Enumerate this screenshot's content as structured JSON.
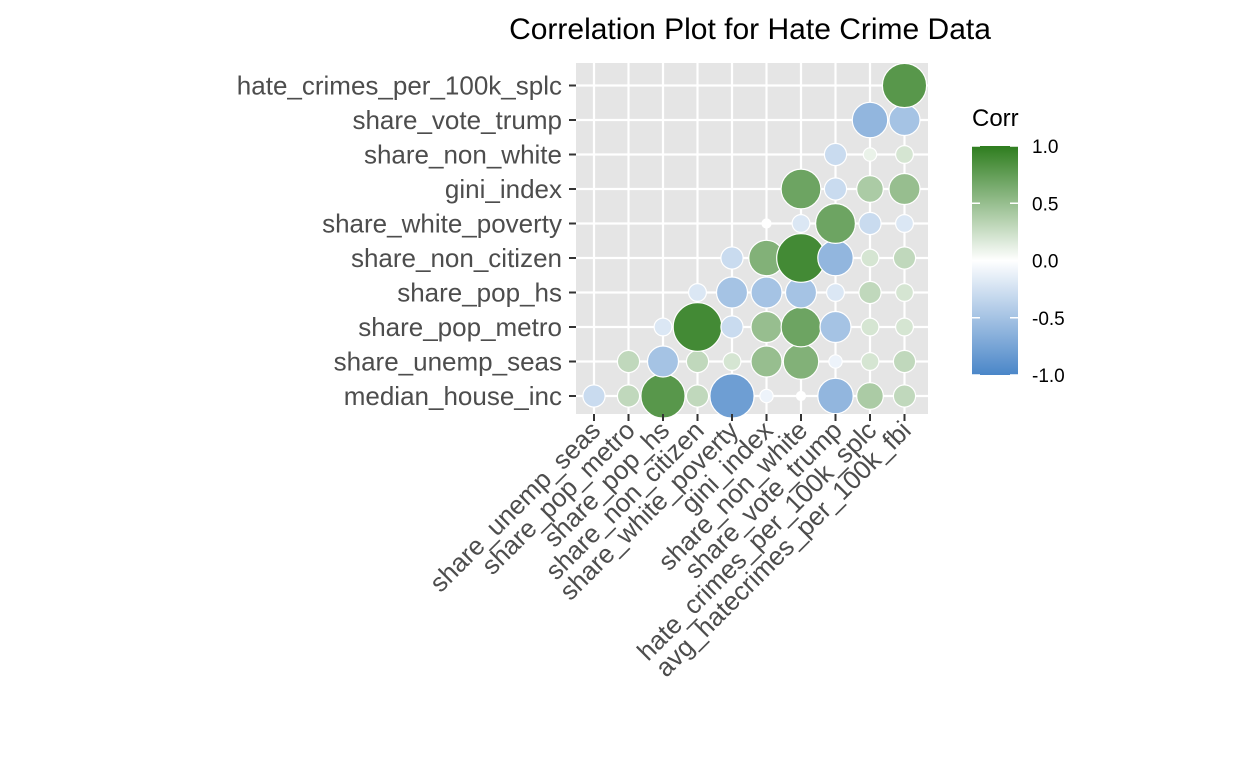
{
  "chart_data": {
    "type": "heatmap",
    "style": "circles, lower-triangular correlation matrix",
    "title": "Correlation Plot for Hate Crime Data",
    "x_labels": [
      "share_unemp_seas",
      "share_pop_metro",
      "share_pop_hs",
      "share_non_citizen",
      "share_white_poverty",
      "gini_index",
      "share_non_white",
      "share_vote_trump",
      "hate_crimes_per_100k_splc",
      "avg_hatecrimes_per_100k_fbi"
    ],
    "y_labels": [
      "median_house_inc",
      "share_unemp_seas",
      "share_pop_metro",
      "share_pop_hs",
      "share_non_citizen",
      "share_white_poverty",
      "gini_index",
      "share_non_white",
      "share_vote_trump",
      "hate_crimes_per_100k_splc"
    ],
    "matrix": [
      [
        -0.3,
        0.3,
        0.8,
        0.3,
        -0.8,
        -0.1,
        0.0,
        -0.6,
        0.4,
        0.3
      ],
      [
        null,
        0.3,
        -0.5,
        0.3,
        0.2,
        0.5,
        0.6,
        -0.1,
        0.2,
        0.3
      ],
      [
        null,
        null,
        -0.2,
        0.9,
        -0.3,
        0.5,
        0.7,
        -0.5,
        0.2,
        0.2
      ],
      [
        null,
        null,
        null,
        -0.2,
        -0.5,
        -0.5,
        -0.5,
        -0.2,
        0.3,
        0.2
      ],
      [
        null,
        null,
        null,
        null,
        -0.3,
        0.6,
        0.9,
        -0.6,
        0.2,
        0.3
      ],
      [
        null,
        null,
        null,
        null,
        null,
        0.0,
        -0.2,
        0.7,
        -0.3,
        -0.2
      ],
      [
        null,
        null,
        null,
        null,
        null,
        null,
        0.7,
        -0.3,
        0.4,
        0.5
      ],
      [
        null,
        null,
        null,
        null,
        null,
        null,
        null,
        -0.3,
        0.1,
        0.2
      ],
      [
        null,
        null,
        null,
        null,
        null,
        null,
        null,
        null,
        -0.6,
        -0.5
      ],
      [
        null,
        null,
        null,
        null,
        null,
        null,
        null,
        null,
        null,
        0.8
      ]
    ],
    "legend": {
      "title": "Corr",
      "ticks": [
        "1.0",
        "0.5",
        "0.0",
        "-0.5",
        "-1.0"
      ],
      "colors": {
        "low": "#4a86c8",
        "mid": "#ffffff",
        "high": "#2e7d1e"
      }
    },
    "panel_background": "#e5e5e5",
    "grid": true,
    "legend_position": "right"
  }
}
